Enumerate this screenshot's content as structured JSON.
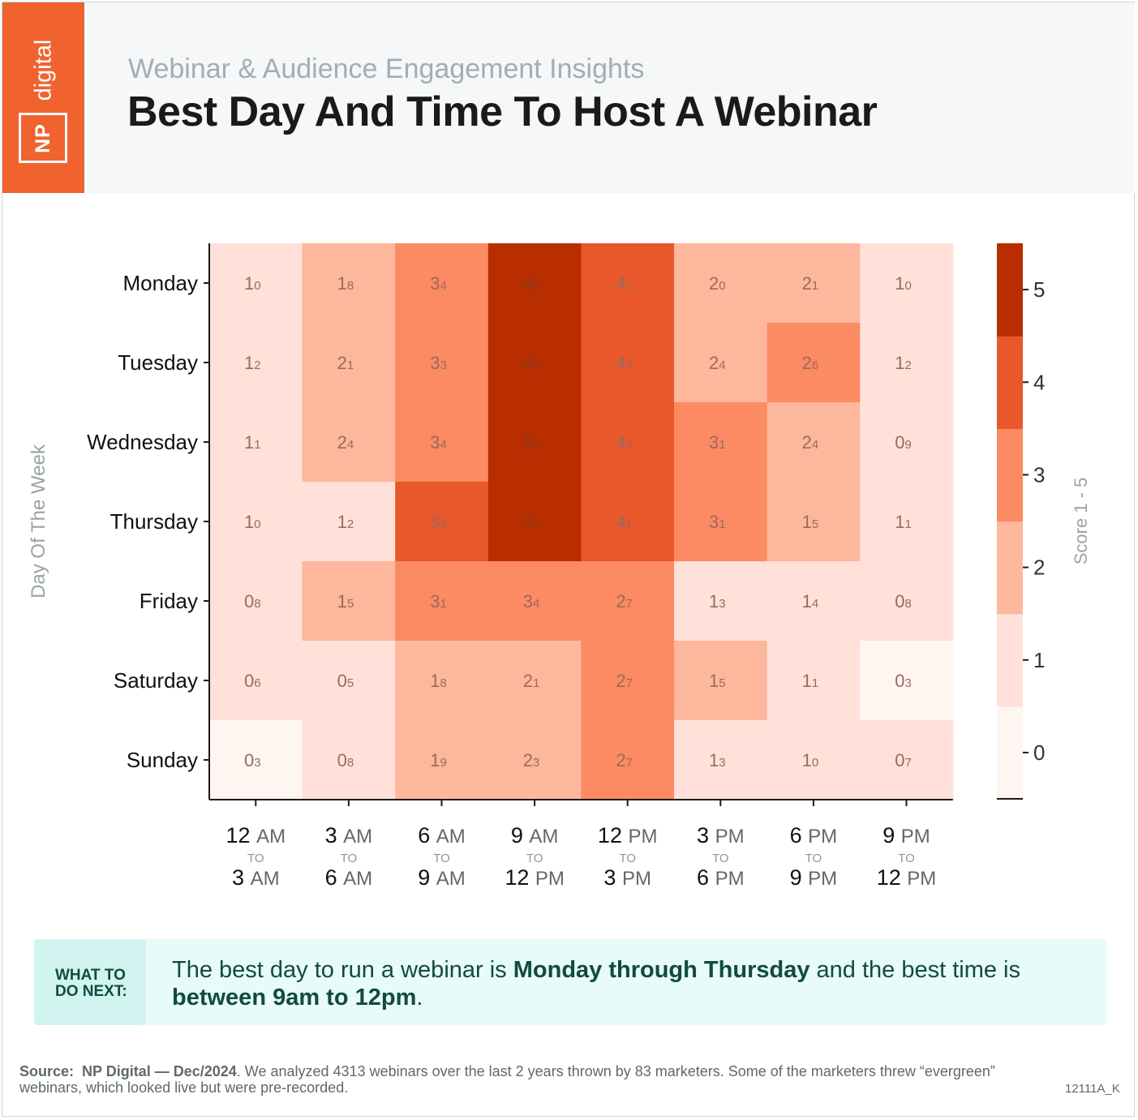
{
  "header": {
    "brand_np": "NP",
    "brand_digital": "digital",
    "subtitle": "Webinar & Audience Engagement Insights",
    "title": "Best Day And Time To Host A Webinar"
  },
  "colors": {
    "brand_orange": "#f0632f",
    "scale": [
      "#fff6f2",
      "#ffe1d9",
      "#fdb79c",
      "#fc8a62",
      "#e8582b",
      "#b82e00"
    ]
  },
  "chart_data": {
    "type": "heatmap",
    "title": "",
    "xlabel": "",
    "ylabel": "Day Of The Week",
    "colorbar_label": "Score 1 - 5",
    "colorbar_ticks": [
      0,
      1,
      2,
      3,
      4,
      5
    ],
    "colorbar_range": [
      -0.5,
      5.5
    ],
    "rows": [
      "Monday",
      "Tuesday",
      "Wednesday",
      "Thursday",
      "Friday",
      "Saturday",
      "Sunday"
    ],
    "columns": [
      {
        "from_num": "12",
        "from_unit": "AM",
        "to": "TO",
        "to_num": "3",
        "to_unit": "AM"
      },
      {
        "from_num": "3",
        "from_unit": "AM",
        "to": "TO",
        "to_num": "6",
        "to_unit": "AM"
      },
      {
        "from_num": "6",
        "from_unit": "AM",
        "to": "TO",
        "to_num": "9",
        "to_unit": "AM"
      },
      {
        "from_num": "9",
        "from_unit": "AM",
        "to": "TO",
        "to_num": "12",
        "to_unit": "PM"
      },
      {
        "from_num": "12",
        "from_unit": "PM",
        "to": "TO",
        "to_num": "3",
        "to_unit": "PM"
      },
      {
        "from_num": "3",
        "from_unit": "PM",
        "to": "TO",
        "to_num": "6",
        "to_unit": "PM"
      },
      {
        "from_num": "6",
        "from_unit": "PM",
        "to": "TO",
        "to_num": "9",
        "to_unit": "PM"
      },
      {
        "from_num": "9",
        "from_unit": "PM",
        "to": "TO",
        "to_num": "12",
        "to_unit": "PM"
      }
    ],
    "values": [
      [
        1.0,
        1.8,
        3.4,
        4.8,
        4.1,
        2.0,
        2.1,
        1.0
      ],
      [
        1.2,
        2.1,
        3.3,
        4.8,
        4.4,
        2.4,
        2.6,
        1.2
      ],
      [
        1.1,
        2.4,
        3.4,
        5.0,
        4.2,
        3.1,
        2.4,
        0.9
      ],
      [
        1.0,
        1.2,
        3.6,
        4.7,
        4.1,
        3.1,
        1.5,
        1.1
      ],
      [
        0.8,
        1.5,
        3.1,
        3.4,
        2.7,
        1.3,
        1.4,
        0.8
      ],
      [
        0.6,
        0.5,
        1.8,
        2.1,
        2.7,
        1.5,
        1.1,
        0.3
      ],
      [
        0.3,
        0.8,
        1.9,
        2.3,
        2.7,
        1.3,
        1.0,
        0.7
      ]
    ]
  },
  "callout": {
    "label": "WHAT TO\nDO NEXT:",
    "text_1": "The best day to run a webinar is ",
    "text_bold_1": "Monday through Thursday",
    "text_2": " and the best time is ",
    "text_bold_2": "between 9am to 12pm",
    "text_3": "."
  },
  "footer": {
    "source_label": "Source:",
    "source_name": "NP Digital — Dec/2024",
    "source_text": ". We analyzed 4313 webinars over the last 2 years thrown by 83 marketers. Some of the marketers threw “evergreen” webinars, which looked live but were pre-recorded.",
    "code": "12111A_K"
  }
}
